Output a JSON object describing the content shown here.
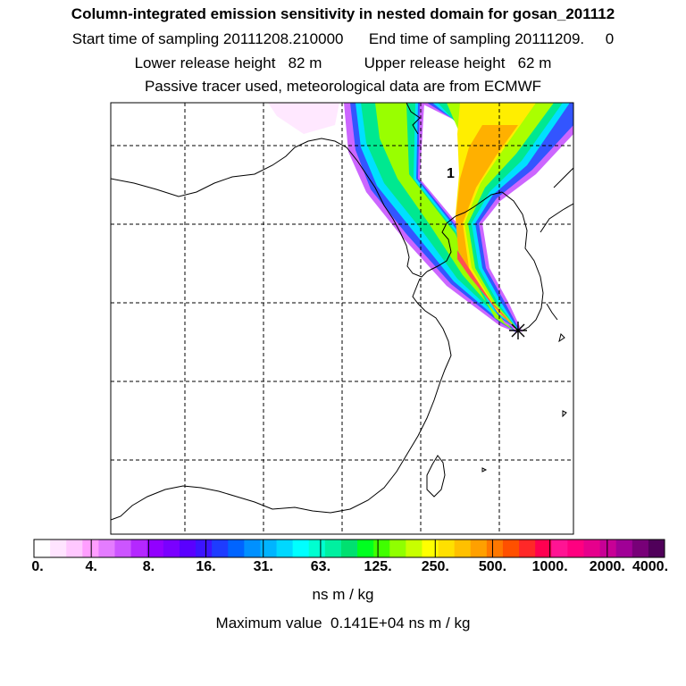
{
  "header": {
    "title": "Column-integrated emission sensitivity in nested domain for gosan_201112",
    "line2": "Start time of sampling 20111208.210000      End time of sampling 20111209.     0",
    "line3": "Lower release height   82 m          Upper release height   62 m",
    "line4": "Passive tracer used, meteorological data are from ECMWF"
  },
  "map": {
    "marker_label": "1",
    "release_marker": "asterisk-icon"
  },
  "colorbar": {
    "ticks": [
      "0.",
      "4.",
      "8.",
      "16.",
      "31.",
      "63.",
      "125.",
      "250.",
      "500.",
      "1000.",
      "2000.",
      "4000."
    ],
    "colors": [
      "#ffffff",
      "#ffe4ff",
      "#ffc8ff",
      "#ff9eff",
      "#e47cff",
      "#cc55ff",
      "#b428ff",
      "#9200ff",
      "#7a00ff",
      "#5a00ff",
      "#3c14ff",
      "#1e3cff",
      "#0064ff",
      "#0090ff",
      "#00b4ff",
      "#00d8ff",
      "#00ffff",
      "#00ffd0",
      "#00f0a0",
      "#00e070",
      "#00ff20",
      "#40ff00",
      "#90ff00",
      "#c8ff00",
      "#ffff00",
      "#ffe000",
      "#ffc000",
      "#ffa000",
      "#ff7800",
      "#ff5000",
      "#ff2828",
      "#ff0050",
      "#ff1493",
      "#ff0080",
      "#e6008c",
      "#c80096",
      "#a00096",
      "#780078",
      "#50005a"
    ],
    "unit": "ns m / kg",
    "max_value": "Maximum value  0.141E+04 ns m / kg"
  }
}
